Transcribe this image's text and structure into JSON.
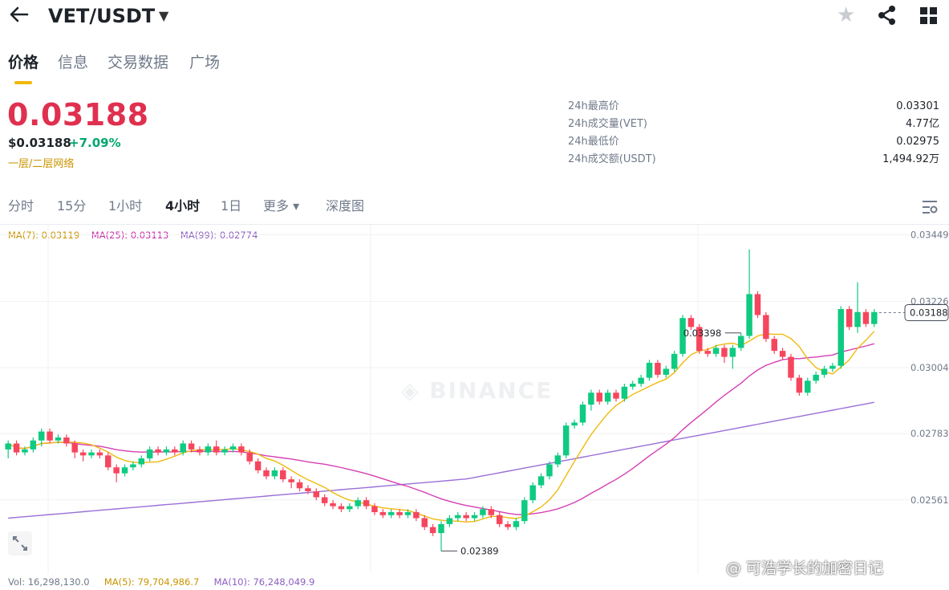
{
  "header": {
    "back_icon": "arrow-left-icon",
    "pair": "VET/USDT",
    "caret_icon": "caret-down-icon",
    "star_icon": "star-icon",
    "share_icon": "share-icon",
    "grid_icon": "grid-icon"
  },
  "tabs": [
    {
      "label": "价格",
      "active": true
    },
    {
      "label": "信息",
      "active": false
    },
    {
      "label": "交易数据",
      "active": false
    },
    {
      "label": "广场",
      "active": false
    }
  ],
  "price": {
    "last": "0.03188",
    "usd": "$0.03188",
    "change": "+7.09%",
    "tag": "一层/二层网络"
  },
  "stats": [
    {
      "label": "24h最高价",
      "value": "0.03301"
    },
    {
      "label": "24h成交量(VET)",
      "value": "4.77亿"
    },
    {
      "label": "24h最低价",
      "value": "0.02975"
    },
    {
      "label": "24h成交额(USDT)",
      "value": "1,494.92万"
    }
  ],
  "intervals": [
    {
      "label": "分时",
      "active": false
    },
    {
      "label": "15分",
      "active": false
    },
    {
      "label": "1小时",
      "active": false
    },
    {
      "label": "4小时",
      "active": true
    },
    {
      "label": "1日",
      "active": false
    },
    {
      "label": "更多 ▾",
      "active": false
    },
    {
      "label": "深度图",
      "active": false
    }
  ],
  "ma_legend": {
    "ma7": "MA(7): 0.03119",
    "ma25": "MA(25): 0.03113",
    "ma99": "MA(99): 0.02774"
  },
  "volume_legend": {
    "vol": "Vol: 16,298,130.0",
    "ma5": "MA(5): 79,704,986.7",
    "ma10": "MA(10): 76,248,049.9"
  },
  "watermark_brand": "BINANCE",
  "footer_watermark": "@ 可浩学长的加密日记",
  "colors": {
    "up": "#0ecb81",
    "down": "#f6465d",
    "ma7": "#f0b90b",
    "ma25": "#d63fb4",
    "ma99": "#9b6fd6",
    "price_red": "#e0304f",
    "accent": "#f0b90b"
  },
  "chart_data": {
    "type": "candlestick",
    "ylim": [
      0.0234,
      0.0345
    ],
    "y_ticks": [
      "0.03449",
      "0.03226",
      "0.03004",
      "0.02783",
      "0.02561"
    ],
    "last_price_label": "0.03188",
    "high_label": "0.03398",
    "low_label": "0.02389",
    "candles": [
      [
        0.0273,
        0.0275,
        0.027,
        0.0276
      ],
      [
        0.0275,
        0.0272,
        0.0271,
        0.0276
      ],
      [
        0.0272,
        0.0273,
        0.0271,
        0.0274
      ],
      [
        0.0273,
        0.0276,
        0.0272,
        0.0277
      ],
      [
        0.0276,
        0.0279,
        0.0274,
        0.028
      ],
      [
        0.0279,
        0.0276,
        0.0275,
        0.028
      ],
      [
        0.0276,
        0.0277,
        0.0275,
        0.0278
      ],
      [
        0.0277,
        0.0275,
        0.0274,
        0.0278
      ],
      [
        0.0275,
        0.0272,
        0.027,
        0.0276
      ],
      [
        0.0272,
        0.0271,
        0.0269,
        0.0273
      ],
      [
        0.0271,
        0.0272,
        0.027,
        0.0273
      ],
      [
        0.0272,
        0.0271,
        0.027,
        0.0273
      ],
      [
        0.0271,
        0.0267,
        0.0266,
        0.0272
      ],
      [
        0.0267,
        0.0265,
        0.0262,
        0.0268
      ],
      [
        0.0265,
        0.0267,
        0.0264,
        0.0268
      ],
      [
        0.0267,
        0.0268,
        0.0266,
        0.0269
      ],
      [
        0.0268,
        0.027,
        0.0267,
        0.0271
      ],
      [
        0.027,
        0.0273,
        0.0269,
        0.0274
      ],
      [
        0.0273,
        0.0272,
        0.0271,
        0.0274
      ],
      [
        0.0272,
        0.0273,
        0.0271,
        0.0274
      ],
      [
        0.0273,
        0.0272,
        0.0271,
        0.0274
      ],
      [
        0.0272,
        0.0275,
        0.0271,
        0.0276
      ],
      [
        0.0275,
        0.0273,
        0.0272,
        0.0276
      ],
      [
        0.0273,
        0.0272,
        0.0271,
        0.0274
      ],
      [
        0.0272,
        0.0274,
        0.0271,
        0.0275
      ],
      [
        0.0274,
        0.0272,
        0.0271,
        0.0276
      ],
      [
        0.0272,
        0.0273,
        0.0271,
        0.0274
      ],
      [
        0.0273,
        0.0274,
        0.0272,
        0.0275
      ],
      [
        0.0274,
        0.0272,
        0.0271,
        0.0275
      ],
      [
        0.0272,
        0.0269,
        0.0268,
        0.0273
      ],
      [
        0.0269,
        0.0266,
        0.0265,
        0.027
      ],
      [
        0.0266,
        0.0264,
        0.0263,
        0.0267
      ],
      [
        0.0264,
        0.0266,
        0.0263,
        0.0267
      ],
      [
        0.0266,
        0.0263,
        0.0262,
        0.0267
      ],
      [
        0.0263,
        0.0262,
        0.026,
        0.0264
      ],
      [
        0.0262,
        0.026,
        0.0259,
        0.0263
      ],
      [
        0.026,
        0.0259,
        0.0258,
        0.0261
      ],
      [
        0.0259,
        0.0257,
        0.0256,
        0.026
      ],
      [
        0.0257,
        0.0255,
        0.0254,
        0.0258
      ],
      [
        0.0255,
        0.0254,
        0.0253,
        0.0256
      ],
      [
        0.0254,
        0.0253,
        0.0252,
        0.0255
      ],
      [
        0.0253,
        0.0254,
        0.0252,
        0.0255
      ],
      [
        0.0254,
        0.0256,
        0.0253,
        0.0257
      ],
      [
        0.0256,
        0.0254,
        0.0253,
        0.0257
      ],
      [
        0.0254,
        0.0252,
        0.0251,
        0.0255
      ],
      [
        0.0252,
        0.0251,
        0.025,
        0.0253
      ],
      [
        0.0251,
        0.0252,
        0.025,
        0.0253
      ],
      [
        0.0252,
        0.0251,
        0.025,
        0.0253
      ],
      [
        0.0251,
        0.0252,
        0.025,
        0.0253
      ],
      [
        0.0252,
        0.025,
        0.0249,
        0.0253
      ],
      [
        0.025,
        0.0247,
        0.0246,
        0.0251
      ],
      [
        0.0247,
        0.0245,
        0.0244,
        0.0248
      ],
      [
        0.0245,
        0.0248,
        0.0239,
        0.0249
      ],
      [
        0.0248,
        0.025,
        0.0247,
        0.0251
      ],
      [
        0.025,
        0.0251,
        0.0249,
        0.0252
      ],
      [
        0.0251,
        0.025,
        0.0249,
        0.0252
      ],
      [
        0.025,
        0.0251,
        0.0249,
        0.0252
      ],
      [
        0.0251,
        0.0253,
        0.025,
        0.0254
      ],
      [
        0.0253,
        0.0251,
        0.025,
        0.0254
      ],
      [
        0.0251,
        0.0248,
        0.0247,
        0.0252
      ],
      [
        0.0248,
        0.0247,
        0.0246,
        0.0249
      ],
      [
        0.0247,
        0.0249,
        0.0246,
        0.025
      ],
      [
        0.0249,
        0.0256,
        0.0248,
        0.0257
      ],
      [
        0.0256,
        0.0261,
        0.0255,
        0.0262
      ],
      [
        0.0261,
        0.0264,
        0.026,
        0.0265
      ],
      [
        0.0264,
        0.0268,
        0.0263,
        0.0269
      ],
      [
        0.0268,
        0.0271,
        0.0267,
        0.0272
      ],
      [
        0.0271,
        0.0281,
        0.027,
        0.0282
      ],
      [
        0.0281,
        0.0282,
        0.028,
        0.0283
      ],
      [
        0.0282,
        0.0288,
        0.0281,
        0.0289
      ],
      [
        0.0288,
        0.0292,
        0.0286,
        0.0293
      ],
      [
        0.0292,
        0.0289,
        0.0288,
        0.0293
      ],
      [
        0.0289,
        0.0292,
        0.0288,
        0.0293
      ],
      [
        0.0292,
        0.029,
        0.0289,
        0.0293
      ],
      [
        0.029,
        0.0294,
        0.0289,
        0.0295
      ],
      [
        0.0294,
        0.0295,
        0.0293,
        0.0296
      ],
      [
        0.0295,
        0.0297,
        0.0294,
        0.0298
      ],
      [
        0.0297,
        0.0302,
        0.0296,
        0.0303
      ],
      [
        0.0302,
        0.0298,
        0.0297,
        0.0303
      ],
      [
        0.0298,
        0.03,
        0.0297,
        0.0301
      ],
      [
        0.03,
        0.0305,
        0.0299,
        0.0306
      ],
      [
        0.0305,
        0.0317,
        0.0304,
        0.0318
      ],
      [
        0.0317,
        0.0314,
        0.0313,
        0.0318
      ],
      [
        0.0314,
        0.0306,
        0.0305,
        0.0315
      ],
      [
        0.0306,
        0.0305,
        0.0304,
        0.0307
      ],
      [
        0.0305,
        0.0307,
        0.0304,
        0.0308
      ],
      [
        0.0307,
        0.0304,
        0.0302,
        0.0308
      ],
      [
        0.0304,
        0.0307,
        0.03,
        0.0308
      ],
      [
        0.0307,
        0.0311,
        0.0306,
        0.0312
      ],
      [
        0.0311,
        0.0325,
        0.031,
        0.034
      ],
      [
        0.0325,
        0.0318,
        0.0317,
        0.0326
      ],
      [
        0.0318,
        0.031,
        0.0309,
        0.0319
      ],
      [
        0.031,
        0.0306,
        0.0305,
        0.0311
      ],
      [
        0.0306,
        0.0304,
        0.0303,
        0.0307
      ],
      [
        0.0304,
        0.0297,
        0.0296,
        0.0305
      ],
      [
        0.0297,
        0.0292,
        0.0291,
        0.0298
      ],
      [
        0.0292,
        0.0296,
        0.0291,
        0.0297
      ],
      [
        0.0296,
        0.0298,
        0.0295,
        0.0299
      ],
      [
        0.0298,
        0.03,
        0.0297,
        0.0301
      ],
      [
        0.03,
        0.0301,
        0.0299,
        0.0302
      ],
      [
        0.0301,
        0.032,
        0.03,
        0.0321
      ],
      [
        0.032,
        0.0314,
        0.0313,
        0.0321
      ],
      [
        0.0314,
        0.0319,
        0.0312,
        0.0329
      ],
      [
        0.0319,
        0.0315,
        0.0314,
        0.032
      ],
      [
        0.0315,
        0.0319,
        0.0314,
        0.032
      ]
    ]
  }
}
